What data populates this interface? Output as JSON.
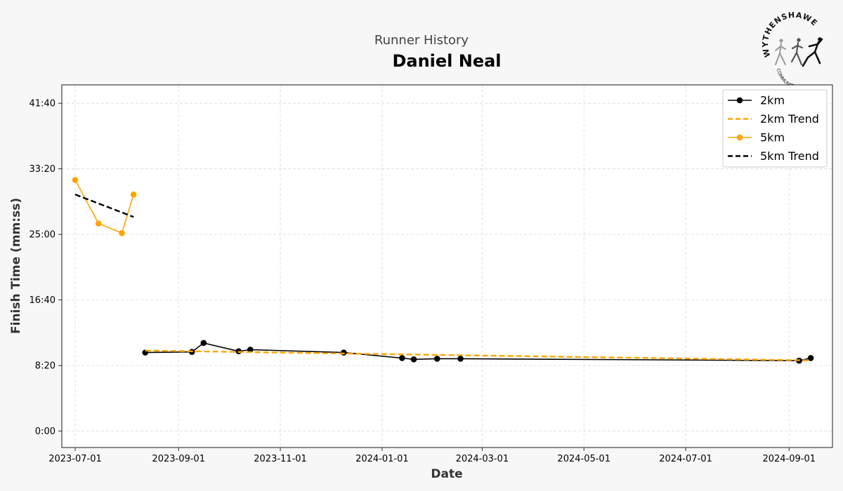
{
  "header": {
    "subtitle": "Runner History",
    "title": "Daniel Neal"
  },
  "logo": {
    "name": "WYTHENSHAWE",
    "tagline": "COMMUNITY RUN",
    "icon": "runners-logo-icon"
  },
  "chart_data": {
    "type": "line",
    "xlabel": "Date",
    "ylabel": "Finish Time (mm:ss)",
    "x_ticks": [
      "2023-07-01",
      "2023-09-01",
      "2023-11-01",
      "2024-01-01",
      "2024-03-01",
      "2024-05-01",
      "2024-07-01",
      "2024-09-01"
    ],
    "y_ticks": [
      "0:00",
      "8:20",
      "16:40",
      "25:00",
      "33:20",
      "41:40"
    ],
    "xlim": [
      "2023-06-23",
      "2024-09-27"
    ],
    "ylim_seconds": [
      -125,
      2640
    ],
    "grid": true,
    "legend_position": "top-right",
    "series": [
      {
        "name": "2km",
        "color": "#000000",
        "style": "solid",
        "marker": "circle",
        "points": [
          {
            "date": "2023-08-12",
            "seconds": 599
          },
          {
            "date": "2023-09-09",
            "seconds": 604
          },
          {
            "date": "2023-09-16",
            "seconds": 672
          },
          {
            "date": "2023-10-07",
            "seconds": 609
          },
          {
            "date": "2023-10-14",
            "seconds": 621
          },
          {
            "date": "2023-12-09",
            "seconds": 599
          },
          {
            "date": "2024-01-13",
            "seconds": 557
          },
          {
            "date": "2024-01-20",
            "seconds": 547
          },
          {
            "date": "2024-02-03",
            "seconds": 552
          },
          {
            "date": "2024-02-17",
            "seconds": 552
          },
          {
            "date": "2024-09-07",
            "seconds": 537
          },
          {
            "date": "2024-09-14",
            "seconds": 557
          }
        ]
      },
      {
        "name": "2km Trend",
        "color": "#ffa500",
        "style": "dashed",
        "marker": "none",
        "points": [
          {
            "date": "2023-08-12",
            "seconds": 614
          },
          {
            "date": "2024-09-14",
            "seconds": 539
          }
        ]
      },
      {
        "name": "5km",
        "color": "#ffa500",
        "style": "solid",
        "marker": "circle",
        "points": [
          {
            "date": "2023-07-01",
            "seconds": 1915
          },
          {
            "date": "2023-07-15",
            "seconds": 1583
          },
          {
            "date": "2023-07-29",
            "seconds": 1510
          },
          {
            "date": "2023-08-05",
            "seconds": 1804
          }
        ]
      },
      {
        "name": "5km Trend",
        "color": "#000000",
        "style": "dashed",
        "marker": "none",
        "points": [
          {
            "date": "2023-07-01",
            "seconds": 1804
          },
          {
            "date": "2023-08-05",
            "seconds": 1633
          }
        ]
      }
    ]
  }
}
